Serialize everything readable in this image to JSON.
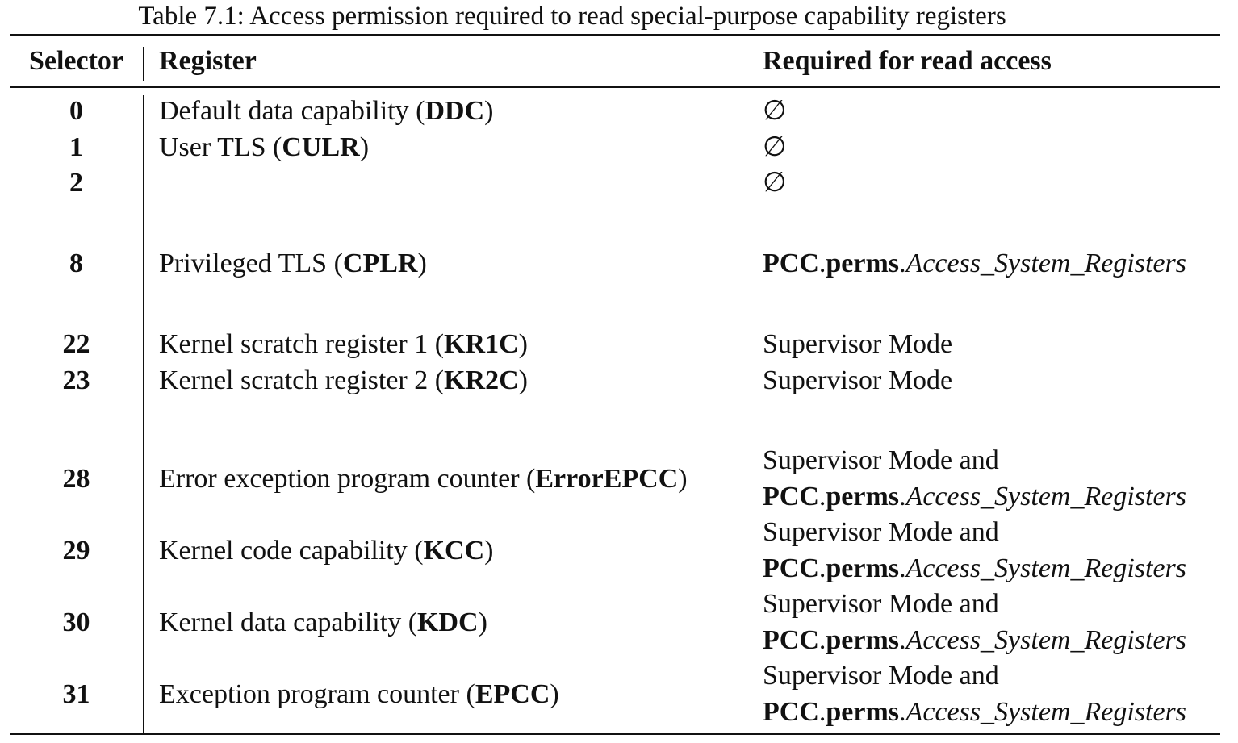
{
  "caption": "Table 7.1: Access permission required to read special-purpose capability registers",
  "headers": {
    "selector": "Selector",
    "register": "Register",
    "required": "Required for read access"
  },
  "tokens": {
    "empty_set": "∅",
    "supervisor_mode": "Supervisor Mode",
    "supervisor_mode_and": "Supervisor Mode and",
    "pcc": "PCC",
    "dot": ".",
    "perms": "perms",
    "access_system_registers": "Access_System_Registers",
    "open_paren": "(",
    "close_paren": ")"
  },
  "rows": [
    {
      "selector": "0",
      "reg_text": "Default data capability ",
      "reg_code": "DDC"
    },
    {
      "selector": "1",
      "reg_text": "User TLS ",
      "reg_code": "CULR"
    },
    {
      "selector": "2"
    },
    {
      "selector": "8",
      "reg_text": "Privileged TLS ",
      "reg_code": "CPLR"
    },
    {
      "selector": "22",
      "reg_text": "Kernel scratch register 1 ",
      "reg_code": "KR1C"
    },
    {
      "selector": "23",
      "reg_text": "Kernel scratch register 2 ",
      "reg_code": "KR2C"
    },
    {
      "selector": "28",
      "reg_text": "Error exception program counter ",
      "reg_code": "ErrorEPCC"
    },
    {
      "selector": "29",
      "reg_text": "Kernel code capability ",
      "reg_code": "KCC"
    },
    {
      "selector": "30",
      "reg_text": "Kernel data capability ",
      "reg_code": "KDC"
    },
    {
      "selector": "31",
      "reg_text": "Exception program counter ",
      "reg_code": "EPCC"
    }
  ]
}
